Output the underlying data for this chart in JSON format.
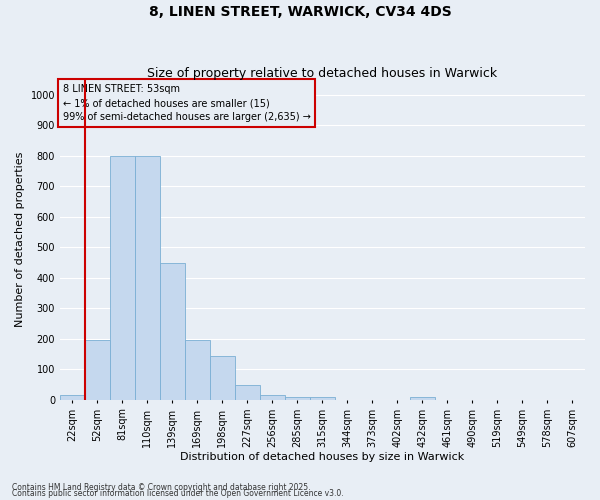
{
  "title1": "8, LINEN STREET, WARWICK, CV34 4DS",
  "title2": "Size of property relative to detached houses in Warwick",
  "xlabel": "Distribution of detached houses by size in Warwick",
  "ylabel": "Number of detached properties",
  "categories": [
    "22sqm",
    "52sqm",
    "81sqm",
    "110sqm",
    "139sqm",
    "169sqm",
    "198sqm",
    "227sqm",
    "256sqm",
    "285sqm",
    "315sqm",
    "344sqm",
    "373sqm",
    "402sqm",
    "432sqm",
    "461sqm",
    "490sqm",
    "519sqm",
    "549sqm",
    "578sqm",
    "607sqm"
  ],
  "values": [
    15,
    197,
    800,
    800,
    449,
    197,
    145,
    50,
    15,
    10,
    10,
    0,
    0,
    0,
    10,
    0,
    0,
    0,
    0,
    0,
    0
  ],
  "bar_color": "#c5d8ee",
  "bar_edge_color": "#7aafd4",
  "annotation_box_color": "#cc0000",
  "annotation_text": "8 LINEN STREET: 53sqm\n← 1% of detached houses are smaller (15)\n99% of semi-detached houses are larger (2,635) →",
  "vline_x_index": 1,
  "footnote1": "Contains HM Land Registry data © Crown copyright and database right 2025.",
  "footnote2": "Contains public sector information licensed under the Open Government Licence v3.0.",
  "ylim": [
    0,
    1050
  ],
  "yticks": [
    0,
    100,
    200,
    300,
    400,
    500,
    600,
    700,
    800,
    900,
    1000
  ],
  "bg_color": "#e8eef5",
  "grid_color": "#ffffff",
  "title_fontsize": 10,
  "subtitle_fontsize": 9,
  "tick_fontsize": 7,
  "label_fontsize": 8,
  "annotation_fontsize": 7,
  "footnote_fontsize": 5.5
}
